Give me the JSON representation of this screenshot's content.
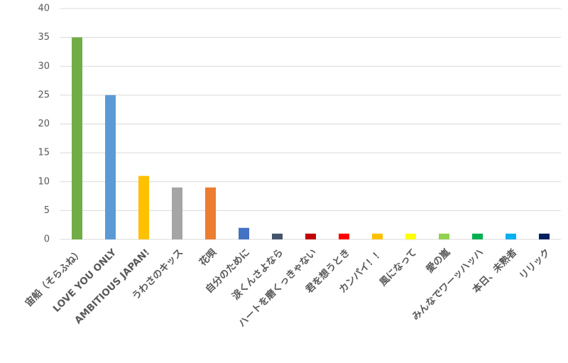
{
  "chart_data": {
    "type": "bar",
    "categories": [
      "宙船（そらふね）",
      "LOVE YOU ONLY",
      "AMBITIOUS JAPAN!",
      "うわさのキッス",
      "花唄",
      "自分のために",
      "涙くんさよなら",
      "ハートを磨くっきゃない",
      "君を想うとき",
      "カンパイ！！",
      "風になって",
      "愛の嵐",
      "みんなでワーッハッハ",
      "本日、未熟者",
      "リリック"
    ],
    "values": [
      35,
      25,
      11,
      9,
      9,
      2,
      1,
      1,
      1,
      1,
      1,
      1,
      1,
      1,
      1
    ],
    "colors": [
      "#70ad47",
      "#5b9bd5",
      "#ffc000",
      "#a5a5a5",
      "#ed7d31",
      "#4472c4",
      "#44546a",
      "#c00000",
      "#ff0000",
      "#ffc000",
      "#ffff00",
      "#92d050",
      "#00b050",
      "#00b0f0",
      "#002060"
    ],
    "ylim": [
      0,
      40
    ],
    "yticks": [
      0,
      5,
      10,
      15,
      20,
      25,
      30,
      35,
      40
    ],
    "grid": true
  }
}
